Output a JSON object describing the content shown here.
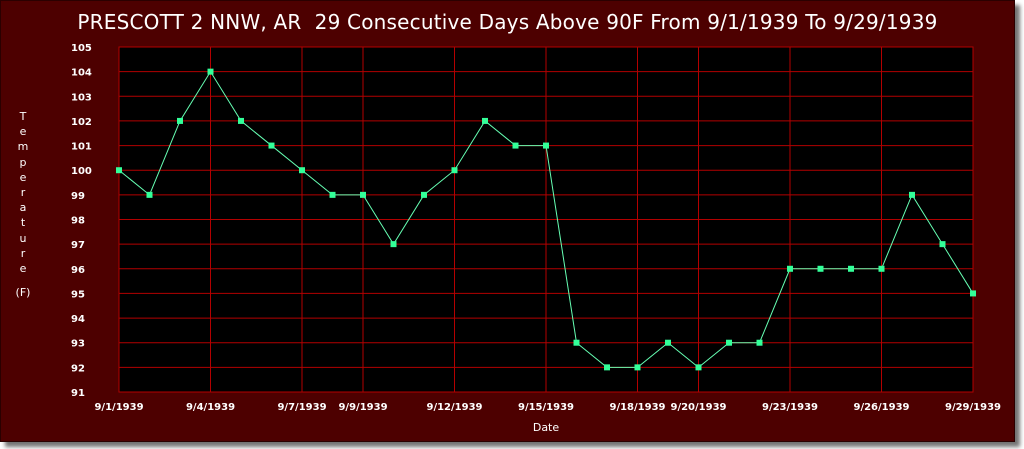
{
  "colors": {
    "frame": "#4d0000",
    "plot_background": "#000000",
    "grid": "#b30000",
    "line": "#66ffb3",
    "marker": "#33ff99",
    "text": "#ffffff"
  },
  "chart_data": {
    "type": "line",
    "title": "PRESCOTT 2 NNW, AR  29 Consecutive Days Above 90F From 9/1/1939 To 9/29/1939",
    "xlabel": "Date",
    "ylabel": "Temperature",
    "yunit": "(F)",
    "ylim": [
      91,
      105
    ],
    "yticks": [
      91,
      92,
      93,
      94,
      95,
      96,
      97,
      98,
      99,
      100,
      101,
      102,
      103,
      104,
      105
    ],
    "grid": true,
    "legend": "none",
    "x_ticks": [
      {
        "date": "1939-09-01",
        "label": "9/1/1939"
      },
      {
        "date": "1939-09-04",
        "label": "9/4/1939"
      },
      {
        "date": "1939-09-07",
        "label": "9/7/1939"
      },
      {
        "date": "1939-09-09",
        "label": "9/9/1939"
      },
      {
        "date": "1939-09-12",
        "label": "9/12/1939"
      },
      {
        "date": "1939-09-15",
        "label": "9/15/1939"
      },
      {
        "date": "1939-09-18",
        "label": "9/18/1939"
      },
      {
        "date": "1939-09-20",
        "label": "9/20/1939"
      },
      {
        "date": "1939-09-23",
        "label": "9/23/1939"
      },
      {
        "date": "1939-09-26",
        "label": "9/26/1939"
      },
      {
        "date": "1939-09-29",
        "label": "9/29/1939"
      }
    ],
    "series": [
      {
        "points": [
          {
            "date": "1939-09-01",
            "value": 100
          },
          {
            "date": "1939-09-02",
            "value": 99
          },
          {
            "date": "1939-09-03",
            "value": 102
          },
          {
            "date": "1939-09-04",
            "value": 104
          },
          {
            "date": "1939-09-05",
            "value": 102
          },
          {
            "date": "1939-09-06",
            "value": 101
          },
          {
            "date": "1939-09-07",
            "value": 100
          },
          {
            "date": "1939-09-08",
            "value": 99
          },
          {
            "date": "1939-09-09",
            "value": 99
          },
          {
            "date": "1939-09-10",
            "value": 97
          },
          {
            "date": "1939-09-11",
            "value": 99
          },
          {
            "date": "1939-09-12",
            "value": 100
          },
          {
            "date": "1939-09-13",
            "value": 102
          },
          {
            "date": "1939-09-14",
            "value": 101
          },
          {
            "date": "1939-09-15",
            "value": 101
          },
          {
            "date": "1939-09-16",
            "value": 93
          },
          {
            "date": "1939-09-17",
            "value": 92
          },
          {
            "date": "1939-09-18",
            "value": 92
          },
          {
            "date": "1939-09-19",
            "value": 93
          },
          {
            "date": "1939-09-20",
            "value": 92
          },
          {
            "date": "1939-09-21",
            "value": 93
          },
          {
            "date": "1939-09-22",
            "value": 93
          },
          {
            "date": "1939-09-23",
            "value": 96
          },
          {
            "date": "1939-09-24",
            "value": 96
          },
          {
            "date": "1939-09-25",
            "value": 96
          },
          {
            "date": "1939-09-26",
            "value": 96
          },
          {
            "date": "1939-09-27",
            "value": 99
          },
          {
            "date": "1939-09-28",
            "value": 97
          },
          {
            "date": "1939-09-29",
            "value": 95
          }
        ]
      }
    ]
  }
}
